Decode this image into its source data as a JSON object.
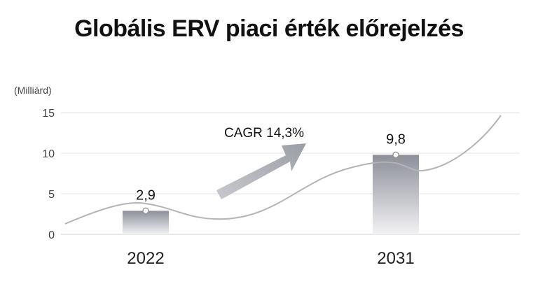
{
  "chart_data": {
    "type": "bar",
    "title": "Globális ERV piaci érték előrejelzés",
    "unit_label": "(Milliárd)",
    "categories": [
      "2022",
      "2031"
    ],
    "values": [
      2.9,
      9.8
    ],
    "value_labels": [
      "2,9",
      "9,8"
    ],
    "ylim": [
      0,
      15
    ],
    "yticks": [
      0,
      5,
      10,
      15
    ],
    "grid": true,
    "annotation": "CAGR 14,3%",
    "colors": {
      "bar_top": "#8d8f99",
      "bar_bottom": "#f2f2f4",
      "grid": "#e3e3e3",
      "curve": "#b4b4b4",
      "arrow": "#a5a7ae"
    }
  }
}
